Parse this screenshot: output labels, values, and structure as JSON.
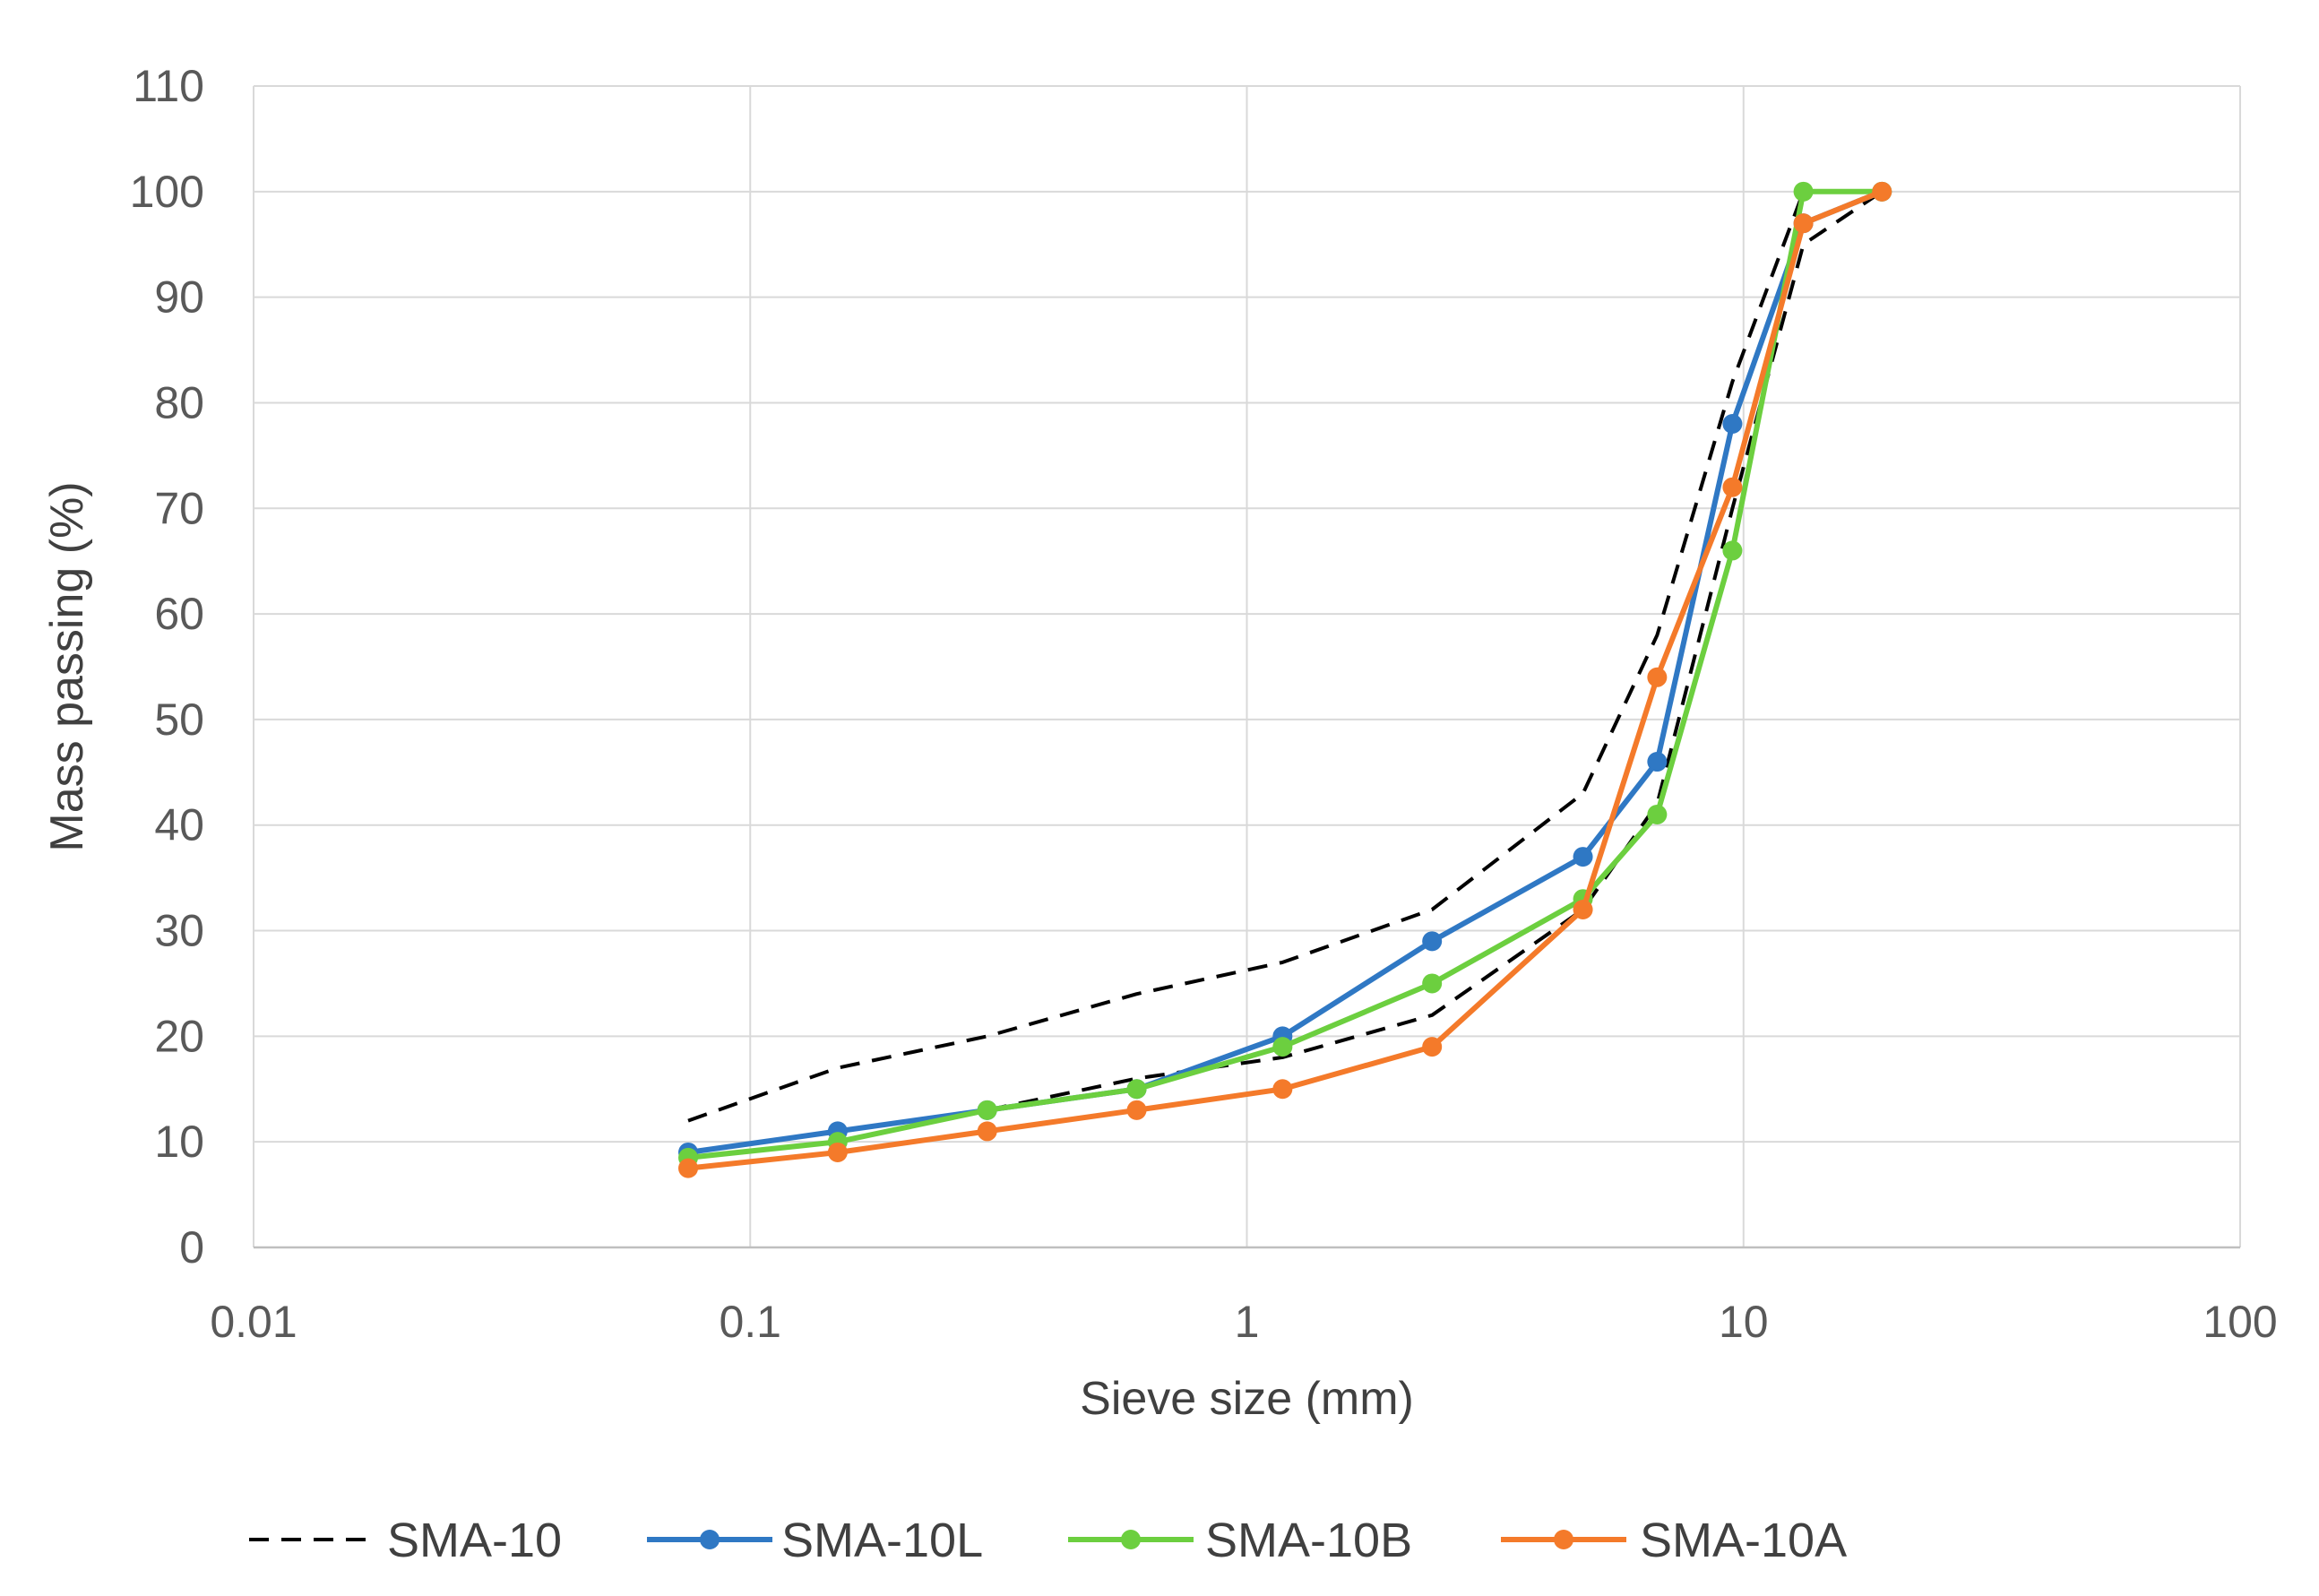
{
  "chart_data": {
    "type": "line",
    "title": "",
    "xlabel": "Sieve size (mm)",
    "ylabel": "Mass passing (%)",
    "x_scale": "log",
    "xlim": [
      0.01,
      100
    ],
    "ylim": [
      0,
      110
    ],
    "x_ticks": [
      0.01,
      0.1,
      1,
      10,
      100
    ],
    "x_tick_labels": [
      "0.01",
      "0.1",
      "1",
      "10",
      "100"
    ],
    "y_ticks": [
      0,
      10,
      20,
      30,
      40,
      50,
      60,
      70,
      80,
      90,
      100,
      110
    ],
    "y_tick_labels": [
      "0",
      "10",
      "20",
      "30",
      "40",
      "50",
      "60",
      "70",
      "80",
      "90",
      "100",
      "110"
    ],
    "grid": true,
    "legend_position": "bottom",
    "series": [
      {
        "name": "SMA-10",
        "color": "#000000",
        "style": "dashed",
        "markers": false,
        "paths": [
          {
            "x": [
              0.075,
              0.15,
              0.3,
              0.6,
              1.18,
              2.36,
              4.75,
              6.7,
              9.5,
              13.2,
              19
            ],
            "y": [
              12,
              17,
              20,
              24,
              27,
              32,
              43,
              58,
              82,
              100,
              100
            ]
          },
          {
            "x": [
              0.3,
              0.6,
              1.18,
              2.36,
              4.75,
              6.7,
              9.5,
              13.2,
              19
            ],
            "y": [
              13,
              16,
              18,
              22,
              32,
              42,
              70,
              95,
              100
            ]
          }
        ]
      },
      {
        "name": "SMA-10L",
        "color": "#2f78c4",
        "style": "solid",
        "markers": true,
        "x": [
          0.075,
          0.15,
          0.3,
          0.6,
          1.18,
          2.36,
          4.75,
          6.7,
          9.5,
          13.2,
          19
        ],
        "y": [
          9,
          11,
          13,
          15,
          20,
          29,
          37,
          46,
          78,
          97,
          100
        ]
      },
      {
        "name": "SMA-10B",
        "color": "#6ccf3f",
        "style": "solid",
        "markers": true,
        "x": [
          0.075,
          0.15,
          0.3,
          0.6,
          1.18,
          2.36,
          4.75,
          6.7,
          9.5,
          13.2,
          19
        ],
        "y": [
          8.5,
          10,
          13,
          15,
          19,
          25,
          33,
          41,
          66,
          100,
          100
        ]
      },
      {
        "name": "SMA-10A",
        "color": "#f47a2a",
        "style": "solid",
        "markers": true,
        "x": [
          0.075,
          0.15,
          0.3,
          0.6,
          1.18,
          2.36,
          4.75,
          6.7,
          9.5,
          13.2,
          19
        ],
        "y": [
          7.5,
          9,
          11,
          13,
          15,
          19,
          32,
          54,
          72,
          97,
          100
        ]
      }
    ]
  }
}
